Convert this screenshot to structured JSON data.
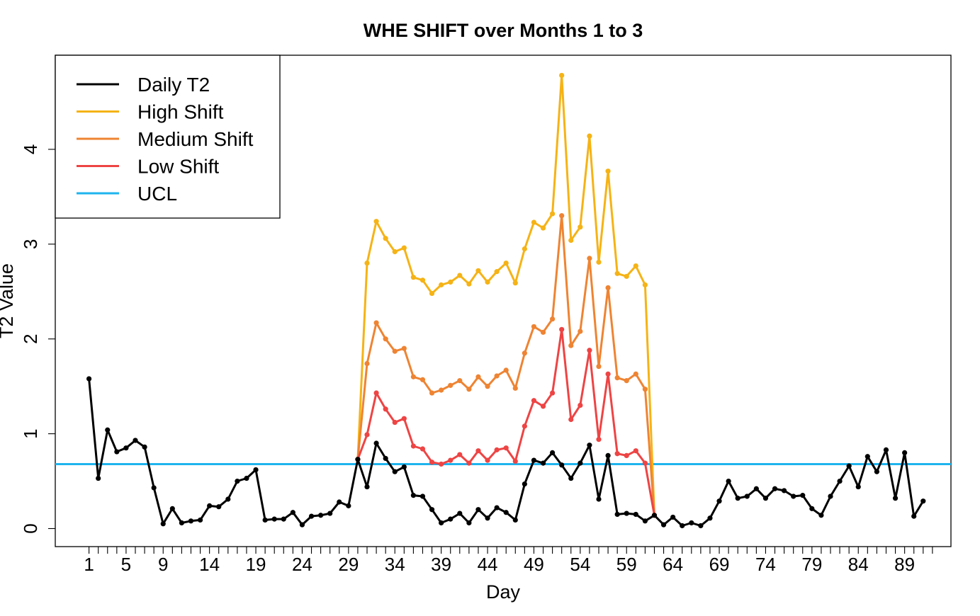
{
  "chart_data": {
    "type": "line",
    "title": "WHE SHIFT over Months 1 to 3",
    "xlabel": "Day",
    "ylabel": "T2 Value",
    "xlim": [
      1,
      92
    ],
    "ylim": [
      0,
      4.8
    ],
    "x_tick_labels": [
      "1",
      "5",
      "9",
      "14",
      "19",
      "24",
      "29",
      "34",
      "39",
      "44",
      "49",
      "54",
      "59",
      "64",
      "69",
      "74",
      "79",
      "84",
      "89"
    ],
    "y_tick_labels": [
      "0",
      "1",
      "2",
      "3",
      "4"
    ],
    "legend_position": "top-left",
    "colors": {
      "daily": "#000000",
      "high": "#F5B316",
      "medium": "#EE8433",
      "low": "#EE4444",
      "ucl": "#1EB4EE"
    },
    "ucl": 0.68,
    "series": [
      {
        "name": "Daily T2",
        "key": "daily",
        "start_day": 1,
        "values": [
          1.58,
          0.53,
          1.04,
          0.81,
          0.85,
          0.93,
          0.86,
          0.43,
          0.05,
          0.21,
          0.06,
          0.08,
          0.09,
          0.24,
          0.23,
          0.31,
          0.5,
          0.53,
          0.62,
          0.09,
          0.1,
          0.1,
          0.17,
          0.04,
          0.13,
          0.14,
          0.16,
          0.28,
          0.24,
          0.73,
          0.44,
          0.9,
          0.74,
          0.6,
          0.65,
          0.35,
          0.34,
          0.2,
          0.06,
          0.1,
          0.16,
          0.06,
          0.2,
          0.11,
          0.22,
          0.17,
          0.09,
          0.47,
          0.72,
          0.69,
          0.8,
          0.67,
          0.53,
          0.69,
          0.88,
          0.31,
          0.77,
          0.15,
          0.16,
          0.15,
          0.08,
          0.14,
          0.04,
          0.12,
          0.03,
          0.06,
          0.03,
          0.11,
          0.29,
          0.5,
          0.32,
          0.34,
          0.42,
          0.32,
          0.42,
          0.4,
          0.34,
          0.35,
          0.21,
          0.14,
          0.34,
          0.5,
          0.66,
          0.44,
          0.76,
          0.6,
          0.83,
          0.32,
          0.8,
          0.13,
          0.29
        ]
      },
      {
        "name": "High Shift",
        "key": "high",
        "start_day": 30,
        "values": [
          0.73,
          2.8,
          3.24,
          3.06,
          2.92,
          2.96,
          2.65,
          2.62,
          2.48,
          2.57,
          2.6,
          2.67,
          2.58,
          2.72,
          2.6,
          2.71,
          2.8,
          2.59,
          2.95,
          3.23,
          3.17,
          3.32,
          4.78,
          3.04,
          3.18,
          4.14,
          2.81,
          3.77,
          2.69,
          2.66,
          2.77,
          2.57,
          0.14
        ]
      },
      {
        "name": "Medium Shift",
        "key": "medium",
        "start_day": 30,
        "values": [
          0.73,
          1.74,
          2.17,
          2.0,
          1.87,
          1.9,
          1.6,
          1.57,
          1.43,
          1.46,
          1.51,
          1.56,
          1.47,
          1.6,
          1.5,
          1.61,
          1.67,
          1.48,
          1.85,
          2.13,
          2.07,
          2.21,
          3.3,
          1.93,
          2.08,
          2.85,
          1.71,
          2.54,
          1.59,
          1.56,
          1.63,
          1.47,
          0.14
        ]
      },
      {
        "name": "Low Shift",
        "key": "low",
        "start_day": 30,
        "values": [
          0.73,
          0.99,
          1.43,
          1.26,
          1.12,
          1.16,
          0.87,
          0.84,
          0.7,
          0.68,
          0.72,
          0.78,
          0.69,
          0.82,
          0.72,
          0.83,
          0.85,
          0.71,
          1.08,
          1.35,
          1.29,
          1.43,
          2.1,
          1.15,
          1.3,
          1.88,
          0.94,
          1.63,
          0.79,
          0.77,
          0.82,
          0.69,
          0.14
        ]
      }
    ],
    "legend": [
      "Daily T2",
      "High Shift",
      "Medium Shift",
      "Low Shift",
      "UCL"
    ]
  }
}
